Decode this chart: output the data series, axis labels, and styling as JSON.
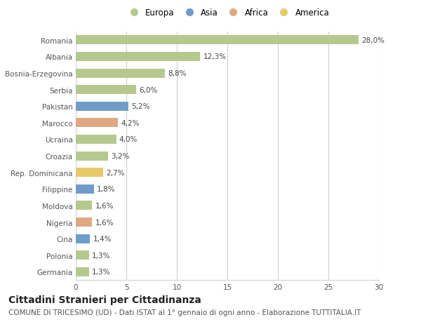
{
  "categories": [
    "Romania",
    "Albania",
    "Bosnia-Erzegovina",
    "Serbia",
    "Pakistan",
    "Marocco",
    "Ucraina",
    "Croazia",
    "Rep. Dominicana",
    "Filippine",
    "Moldova",
    "Nigeria",
    "Cina",
    "Polonia",
    "Germania"
  ],
  "values": [
    28.0,
    12.3,
    8.8,
    6.0,
    5.2,
    4.2,
    4.0,
    3.2,
    2.7,
    1.8,
    1.6,
    1.6,
    1.4,
    1.3,
    1.3
  ],
  "labels": [
    "28,0%",
    "12,3%",
    "8,8%",
    "6,0%",
    "5,2%",
    "4,2%",
    "4,0%",
    "3,2%",
    "2,7%",
    "1,8%",
    "1,6%",
    "1,6%",
    "1,4%",
    "1,3%",
    "1,3%"
  ],
  "continents": [
    "Europa",
    "Europa",
    "Europa",
    "Europa",
    "Asia",
    "Africa",
    "Europa",
    "Europa",
    "America",
    "Asia",
    "Europa",
    "Africa",
    "Asia",
    "Europa",
    "Europa"
  ],
  "continent_colors": {
    "Europa": "#b5c98e",
    "Asia": "#6f9dc8",
    "Africa": "#e0a882",
    "America": "#e8c96a"
  },
  "legend_order": [
    "Europa",
    "Asia",
    "Africa",
    "America"
  ],
  "xlim": [
    0,
    30
  ],
  "xticks": [
    0,
    5,
    10,
    15,
    20,
    25,
    30
  ],
  "title": "Cittadini Stranieri per Cittadinanza",
  "subtitle": "COMUNE DI TRICESIMO (UD) - Dati ISTAT al 1° gennaio di ogni anno - Elaborazione TUTTITALIA.IT",
  "bg_color": "#ffffff",
  "grid_color": "#d0d0d0",
  "bar_height": 0.55,
  "title_fontsize": 10,
  "subtitle_fontsize": 7.5,
  "label_fontsize": 7.5,
  "tick_fontsize": 7.5,
  "legend_fontsize": 8.5
}
